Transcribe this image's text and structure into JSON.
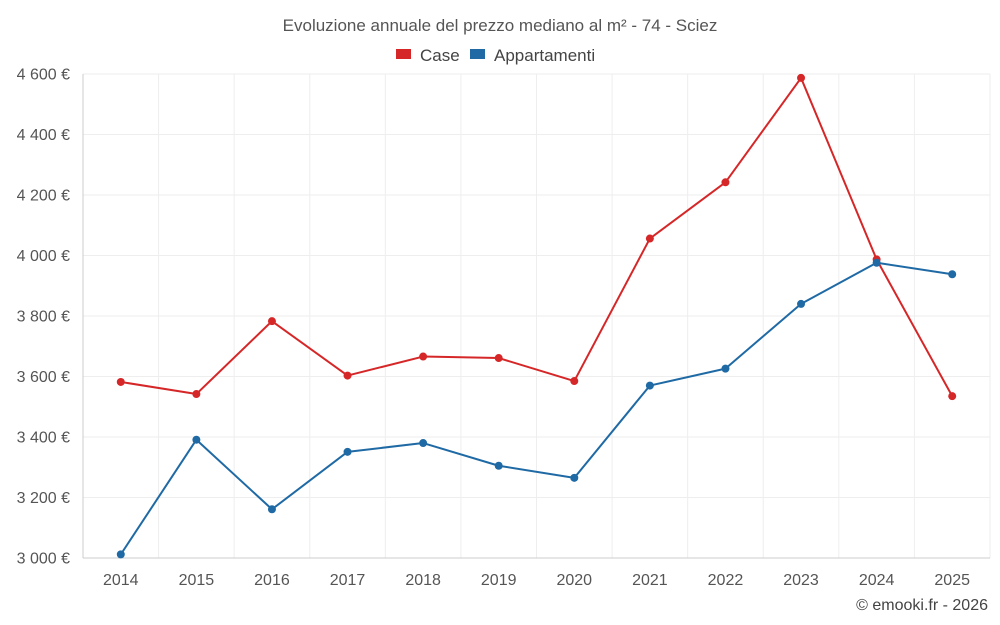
{
  "chart_data": {
    "type": "line",
    "title": "Evoluzione annuale del prezzo mediano al m² - 74 - Sciez",
    "categories": [
      "2014",
      "2015",
      "2016",
      "2017",
      "2018",
      "2019",
      "2020",
      "2021",
      "2022",
      "2023",
      "2024",
      "2025"
    ],
    "series": [
      {
        "name": "Case",
        "color": "#d62728",
        "values": [
          3582,
          3542,
          3783,
          3603,
          3666,
          3661,
          3585,
          4056,
          4242,
          4587,
          3987,
          3535
        ]
      },
      {
        "name": "Appartamenti",
        "color": "#1f6aa5",
        "values": [
          3012,
          3391,
          3161,
          3351,
          3380,
          3305,
          3265,
          3570,
          3626,
          3840,
          3976,
          3938
        ]
      }
    ],
    "ylim": [
      3000,
      4600
    ],
    "yticks": [
      3000,
      3200,
      3400,
      3600,
      3800,
      4000,
      4200,
      4400,
      4600
    ],
    "ytick_labels": [
      "3 000 €",
      "3 200 €",
      "3 400 €",
      "3 600 €",
      "3 800 €",
      "4 000 €",
      "4 200 €",
      "4 400 €",
      "4 600 €"
    ],
    "xlabel": "",
    "ylabel": "",
    "grid": true,
    "legend_position": "top-center"
  },
  "credit": "© emooki.fr - 2026"
}
